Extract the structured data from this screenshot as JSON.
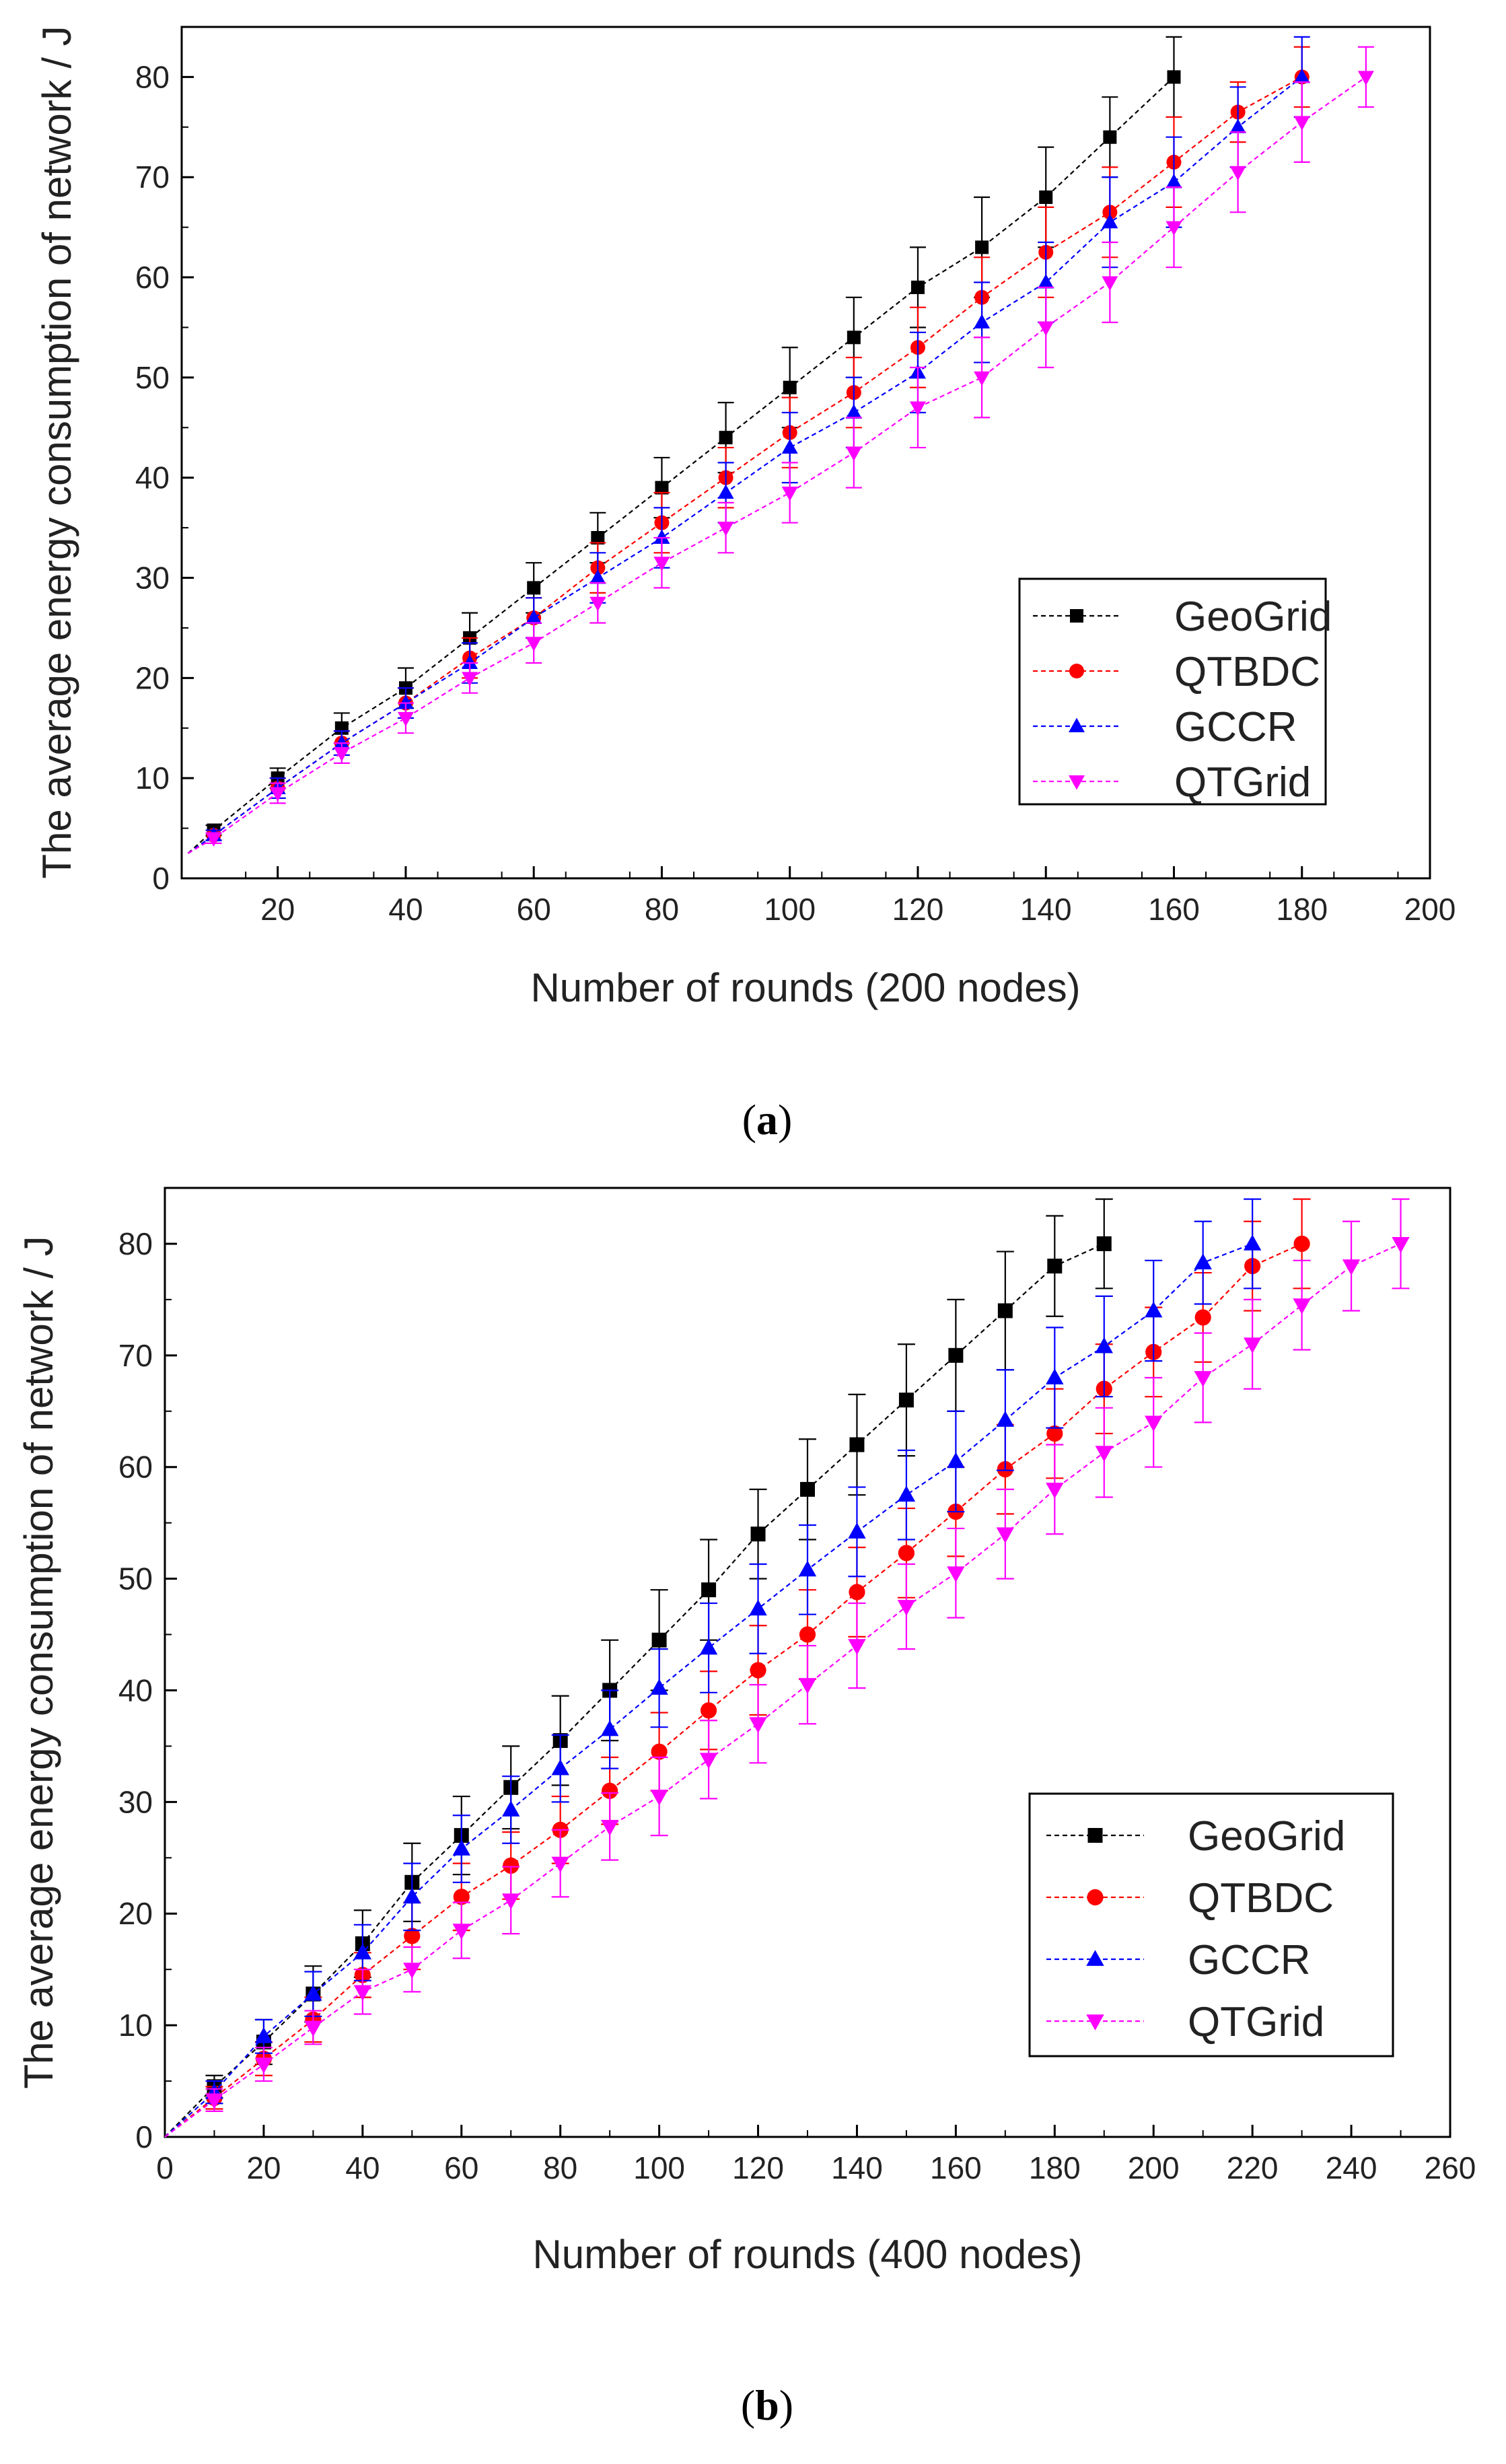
{
  "colors": {
    "GeoGrid": "#000000",
    "QTBDC": "#ff0000",
    "GCCR": "#0000ff",
    "QTGrid": "#ff00ff"
  },
  "chart_data": [
    {
      "type": "line",
      "xlabel": "Number of rounds (200 nodes)",
      "ylabel": "The average energy consumption of network / J",
      "caption": "a",
      "xlim": [
        5,
        200
      ],
      "ylim": [
        0,
        85
      ],
      "xticks": [
        20,
        40,
        60,
        80,
        100,
        120,
        140,
        160,
        180,
        200
      ],
      "yticks": [
        0,
        10,
        20,
        30,
        40,
        50,
        60,
        70,
        80
      ],
      "origin_y": 2.5,
      "legend_position": "bottom-right",
      "series": [
        {
          "name": "GeoGrid",
          "marker": "square",
          "x": [
            10,
            20,
            30,
            40,
            50,
            60,
            70,
            80,
            90,
            100,
            110,
            120,
            130,
            140,
            150,
            160
          ],
          "y": [
            4.8,
            10,
            15,
            19,
            24,
            29,
            34,
            39,
            44,
            49,
            54,
            59,
            63,
            68,
            74,
            80
          ],
          "err": [
            0.5,
            1,
            1.5,
            2,
            2.5,
            2.5,
            2.5,
            3,
            3.5,
            4,
            4,
            4,
            5,
            5,
            4,
            4
          ]
        },
        {
          "name": "QTBDC",
          "marker": "circle",
          "x": [
            10,
            20,
            30,
            40,
            50,
            60,
            70,
            80,
            90,
            100,
            110,
            120,
            130,
            140,
            150,
            160,
            170,
            180
          ],
          "y": [
            4.3,
            9,
            13.5,
            17.5,
            22,
            26,
            31,
            35.5,
            40,
            44.5,
            48.5,
            53,
            58,
            62.5,
            66.5,
            71.5,
            76.5,
            80
          ],
          "err": [
            0.5,
            1,
            1.2,
            1.5,
            2,
            2,
            2.5,
            3,
            3,
            3.5,
            3.5,
            4,
            4,
            4.5,
            4.5,
            4.5,
            3,
            3
          ]
        },
        {
          "name": "GCCR",
          "marker": "triangle-up",
          "x": [
            10,
            20,
            30,
            40,
            50,
            60,
            70,
            80,
            90,
            100,
            110,
            120,
            130,
            140,
            150,
            160,
            170,
            180
          ],
          "y": [
            4.3,
            9,
            13.5,
            17.5,
            21.5,
            26,
            30,
            34,
            38.5,
            43,
            46.5,
            50.5,
            55.5,
            59.5,
            65.5,
            69.5,
            75,
            80
          ],
          "err": [
            0.5,
            1,
            1.2,
            1.5,
            2,
            2,
            2.5,
            3,
            3,
            3.5,
            3.5,
            4,
            4,
            4,
            4.5,
            4.5,
            4,
            4
          ]
        },
        {
          "name": "QTGrid",
          "marker": "triangle-down",
          "x": [
            10,
            20,
            30,
            40,
            50,
            60,
            70,
            80,
            90,
            100,
            110,
            120,
            130,
            140,
            150,
            160,
            170,
            180,
            190
          ],
          "y": [
            4,
            8.5,
            12.5,
            16,
            20,
            23.5,
            27.5,
            31.5,
            35,
            38.5,
            42.5,
            47,
            50,
            55,
            59.5,
            65,
            70.5,
            75.5,
            80
          ],
          "err": [
            0.5,
            1,
            1,
            1.5,
            1.5,
            2,
            2,
            2.5,
            2.5,
            3,
            3.5,
            4,
            4,
            4,
            4,
            4,
            4,
            4,
            3
          ]
        }
      ]
    },
    {
      "type": "line",
      "xlabel": "Number of rounds (400 nodes)",
      "ylabel": "The average energy consumption of network / J",
      "caption": "b",
      "xlim": [
        0,
        260
      ],
      "ylim": [
        0,
        85
      ],
      "xticks": [
        0,
        20,
        40,
        60,
        80,
        100,
        120,
        140,
        160,
        180,
        200,
        220,
        240,
        260
      ],
      "yticks": [
        0,
        10,
        20,
        30,
        40,
        50,
        60,
        70,
        80
      ],
      "origin_y": 0,
      "legend_position": "bottom-right",
      "series": [
        {
          "name": "GeoGrid",
          "marker": "square",
          "x": [
            10,
            20,
            30,
            40,
            50,
            60,
            70,
            80,
            90,
            100,
            110,
            120,
            130,
            140,
            150,
            160,
            170,
            180,
            190
          ],
          "y": [
            4.5,
            8.5,
            12.8,
            17.3,
            22.8,
            27,
            31.3,
            35.5,
            40,
            44.5,
            49,
            54,
            58,
            62,
            66,
            70,
            74,
            78,
            80
          ],
          "err": [
            1,
            2,
            2.5,
            3,
            3.5,
            3.5,
            3.7,
            4,
            4.5,
            4.5,
            4.5,
            4,
            4.5,
            4.5,
            5,
            5,
            5.3,
            4.5,
            4
          ]
        },
        {
          "name": "QTBDC",
          "marker": "circle",
          "x": [
            10,
            20,
            30,
            40,
            50,
            60,
            70,
            80,
            90,
            100,
            110,
            120,
            130,
            140,
            150,
            160,
            170,
            180,
            190,
            200,
            210,
            220,
            230
          ],
          "y": [
            3.5,
            7,
            10.5,
            14.5,
            18,
            21.5,
            24.3,
            27.5,
            31,
            34.5,
            38.2,
            41.8,
            45,
            48.8,
            52.3,
            56,
            59.8,
            63,
            67,
            70.3,
            73.4,
            78,
            80
          ],
          "err": [
            1,
            1.5,
            2,
            2,
            3,
            3,
            3,
            3,
            3,
            3.5,
            3.5,
            4,
            4,
            4,
            4,
            4,
            4,
            4,
            4,
            4,
            4,
            4,
            4
          ]
        },
        {
          "name": "GCCR",
          "marker": "triangle-up",
          "x": [
            10,
            20,
            30,
            40,
            50,
            60,
            70,
            80,
            90,
            100,
            110,
            120,
            130,
            140,
            150,
            160,
            170,
            180,
            190,
            200,
            210,
            220
          ],
          "y": [
            4,
            9,
            12.8,
            16.5,
            21.5,
            25.8,
            29.3,
            33,
            36.5,
            40.2,
            43.8,
            47.3,
            50.8,
            54.2,
            57.5,
            60.5,
            64.2,
            68,
            70.8,
            74,
            78.3,
            80
          ],
          "err": [
            1,
            1.5,
            2,
            2.5,
            3,
            3,
            3,
            3,
            3.5,
            3.5,
            4,
            4,
            4,
            4,
            4,
            4.5,
            4.5,
            4.5,
            4.5,
            4.5,
            3.7,
            4
          ]
        },
        {
          "name": "QTGrid",
          "marker": "triangle-down",
          "x": [
            10,
            20,
            30,
            40,
            50,
            60,
            70,
            80,
            90,
            100,
            110,
            120,
            130,
            140,
            150,
            160,
            170,
            180,
            190,
            200,
            210,
            220,
            230,
            240,
            250
          ],
          "y": [
            3.3,
            6.5,
            9.8,
            13,
            15,
            18.5,
            21.2,
            24.5,
            27.8,
            30.5,
            33.8,
            37,
            40.5,
            44,
            47.5,
            50.5,
            54,
            58,
            61.3,
            64,
            68,
            71,
            74.5,
            78,
            80
          ],
          "err": [
            1,
            1.5,
            1.5,
            2,
            2,
            2.5,
            3,
            3,
            3,
            3.5,
            3.5,
            3.5,
            3.5,
            3.8,
            3.8,
            4,
            4,
            4,
            4,
            4,
            4,
            4,
            4,
            4,
            4
          ]
        }
      ]
    }
  ]
}
